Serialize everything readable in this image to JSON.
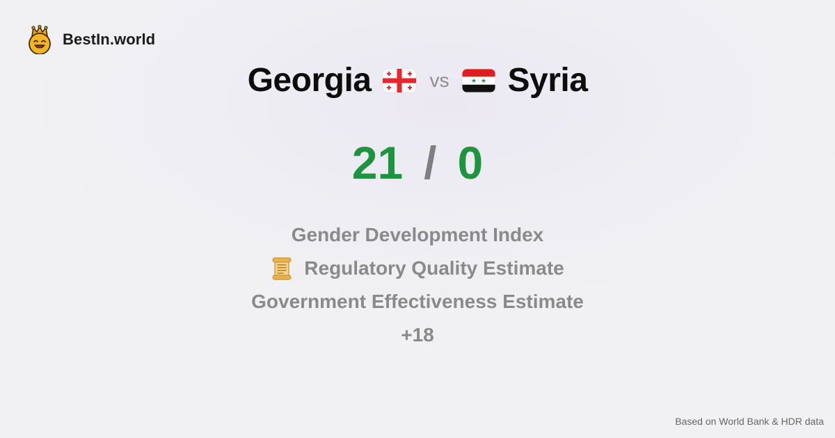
{
  "brand": {
    "name": "BestIn.world",
    "logo_icon": "crown-smiley-icon"
  },
  "comparison": {
    "left_country": "Georgia",
    "vs_label": "vs",
    "right_country": "Syria",
    "left_flag_icon": "georgia-flag-icon",
    "right_flag_icon": "syria-flag-icon"
  },
  "score": {
    "left": "21",
    "separator": "/",
    "right": "0",
    "color": "#1e9441"
  },
  "metrics": {
    "items": [
      {
        "label": "Gender Development Index"
      },
      {
        "label": "Regulatory Quality Estimate",
        "icon": "scroll-icon"
      },
      {
        "label": "Government Effectiveness Estimate"
      }
    ],
    "more": "+18"
  },
  "footer": {
    "source": "Based on World Bank & HDR data"
  }
}
